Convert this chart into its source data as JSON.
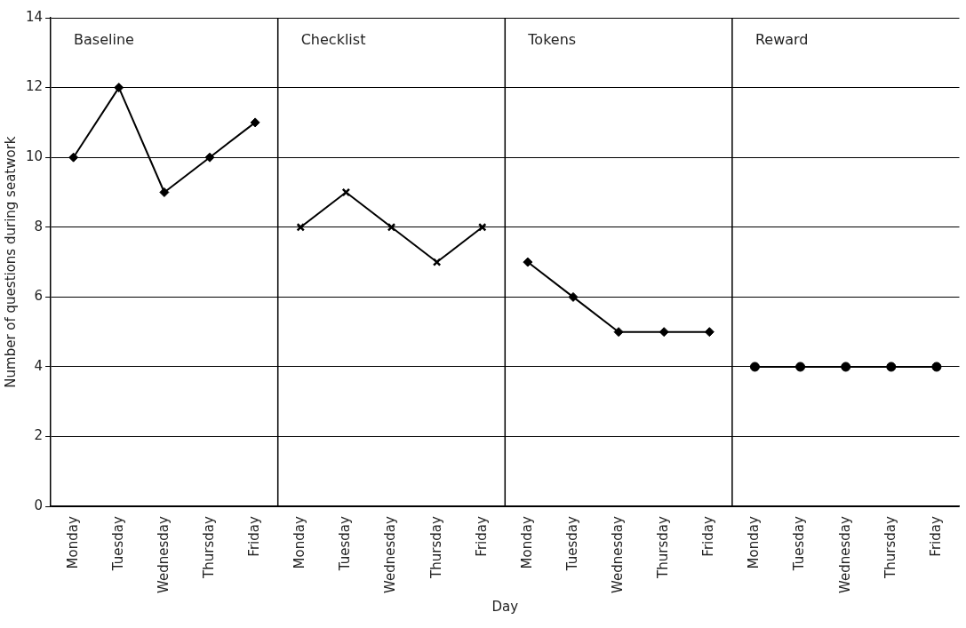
{
  "chart_data": {
    "type": "line",
    "xlabel": "Day",
    "ylabel": "Number of questions during seatwork",
    "categories": [
      "Monday",
      "Tuesday",
      "Wednesday",
      "Thursday",
      "Friday",
      "Monday",
      "Tuesday",
      "Wednesday",
      "Thursday",
      "Friday",
      "Monday",
      "Tuesday",
      "Wednesday",
      "Thursday",
      "Friday",
      "Monday",
      "Tuesday",
      "Wednesday",
      "Thursday",
      "Friday"
    ],
    "series": [
      {
        "color": "#000000",
        "marker": "diamond",
        "values": [
          10,
          12,
          9,
          10,
          11,
          null,
          null,
          null,
          null,
          null,
          null,
          null,
          null,
          null,
          null,
          null,
          null,
          null,
          null,
          null
        ]
      },
      {
        "color": "#000000",
        "marker": "cross",
        "values": [
          null,
          null,
          null,
          null,
          null,
          8,
          9,
          8,
          7,
          8,
          null,
          null,
          null,
          null,
          null,
          null,
          null,
          null,
          null,
          null
        ]
      },
      {
        "color": "#000000",
        "marker": "diamond",
        "values": [
          null,
          null,
          null,
          null,
          null,
          null,
          null,
          null,
          null,
          null,
          7,
          6,
          5,
          5,
          5,
          null,
          null,
          null,
          null,
          null
        ]
      },
      {
        "color": "#000000",
        "marker": "circle",
        "values": [
          null,
          null,
          null,
          null,
          null,
          null,
          null,
          null,
          null,
          null,
          null,
          null,
          null,
          null,
          null,
          4,
          4,
          4,
          4,
          4
        ]
      }
    ],
    "annotations": [
      "Baseline",
      "Checklist",
      "Tokens",
      "Reward"
    ],
    "ylim": [
      0,
      14
    ],
    "yticks": [
      0,
      2,
      4,
      6,
      8,
      10,
      12,
      14
    ],
    "grid": "y",
    "legend": false
  }
}
